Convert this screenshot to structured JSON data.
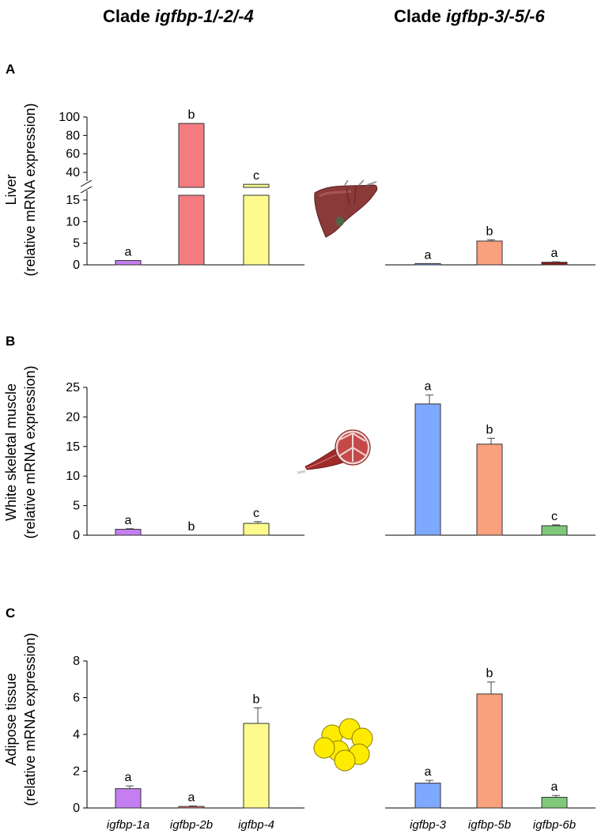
{
  "titles": {
    "left_prefix": "Clade ",
    "left_genes": "igfbp-1/-2/-4",
    "right_prefix": "Clade ",
    "right_genes": "igfbp-3/-5/-6"
  },
  "colors": {
    "igfbp-1a": "#c57ef2",
    "igfbp-2b": "#f47c80",
    "igfbp-4": "#fdfb8e",
    "igfbp-3": "#7fa8ff",
    "igfbp-5b": "#f9a07d",
    "igfbp-6b": "#7fc87a",
    "igfbp-6b_liver": "#8b1a1a"
  },
  "chart_data": [
    {
      "panel": "A",
      "type": "bar",
      "clade": "igfbp-1/-2/-4",
      "ylabel_line1": "Liver",
      "ylabel_line2": "(relative mRNA expression)",
      "broken_axis": true,
      "lower_ylim": [
        0,
        17
      ],
      "lower_ticks": [
        "0",
        "5",
        "10",
        "15"
      ],
      "upper_ylim": [
        30,
        100
      ],
      "upper_ticks": [
        "40",
        "60",
        "80",
        "100"
      ],
      "categories": [
        "igfbp-1a",
        "igfbp-2b",
        "igfbp-4"
      ],
      "values": [
        1,
        93,
        27
      ],
      "errors": [
        0.1,
        0,
        0
      ],
      "letters": [
        "a",
        "b",
        "c"
      ]
    },
    {
      "panel": "A",
      "type": "bar",
      "clade": "igfbp-3/-5/-6",
      "ylim": [
        0,
        17
      ],
      "categories": [
        "igfbp-3",
        "igfbp-5b",
        "igfbp-6b"
      ],
      "values": [
        0.3,
        5.5,
        0.6
      ],
      "errors": [
        0,
        0.3,
        0.1
      ],
      "letters": [
        "a",
        "b",
        "a"
      ]
    },
    {
      "panel": "B",
      "type": "bar",
      "clade": "igfbp-1/-2/-4",
      "ylabel_line1": "White skeletal muscle",
      "ylabel_line2": "(relative mRNA expression)",
      "ylim": [
        0,
        25
      ],
      "ticks": [
        "0",
        "5",
        "10",
        "15",
        "20",
        "25"
      ],
      "categories": [
        "igfbp-1a",
        "igfbp-2b",
        "igfbp-4"
      ],
      "values": [
        1,
        0,
        2
      ],
      "errors": [
        0.1,
        0,
        0.3
      ],
      "letters": [
        "a",
        "b",
        "c"
      ]
    },
    {
      "panel": "B",
      "type": "bar",
      "clade": "igfbp-3/-5/-6",
      "ylim": [
        0,
        25
      ],
      "categories": [
        "igfbp-3",
        "igfbp-5b",
        "igfbp-6b"
      ],
      "values": [
        22.2,
        15.4,
        1.6
      ],
      "errors": [
        1.5,
        1,
        0.15
      ],
      "letters": [
        "a",
        "b",
        "c"
      ]
    },
    {
      "panel": "C",
      "type": "bar",
      "clade": "igfbp-1/-2/-4",
      "ylabel_line1": "Adipose tissue",
      "ylabel_line2": "(relative mRNA expression)",
      "ylim": [
        0,
        8
      ],
      "ticks": [
        "0",
        "2",
        "4",
        "6",
        "8"
      ],
      "categories": [
        "igfbp-1a",
        "igfbp-2b",
        "igfbp-4"
      ],
      "values": [
        1.05,
        0.08,
        4.6
      ],
      "errors": [
        0.15,
        0.03,
        0.85
      ],
      "letters": [
        "a",
        "a",
        "b"
      ]
    },
    {
      "panel": "C",
      "type": "bar",
      "clade": "igfbp-3/-5/-6",
      "ylim": [
        0,
        8
      ],
      "categories": [
        "igfbp-3",
        "igfbp-5b",
        "igfbp-6b"
      ],
      "values": [
        1.35,
        6.2,
        0.58
      ],
      "errors": [
        0.15,
        0.65,
        0.1
      ],
      "letters": [
        "a",
        "b",
        "a"
      ]
    }
  ]
}
